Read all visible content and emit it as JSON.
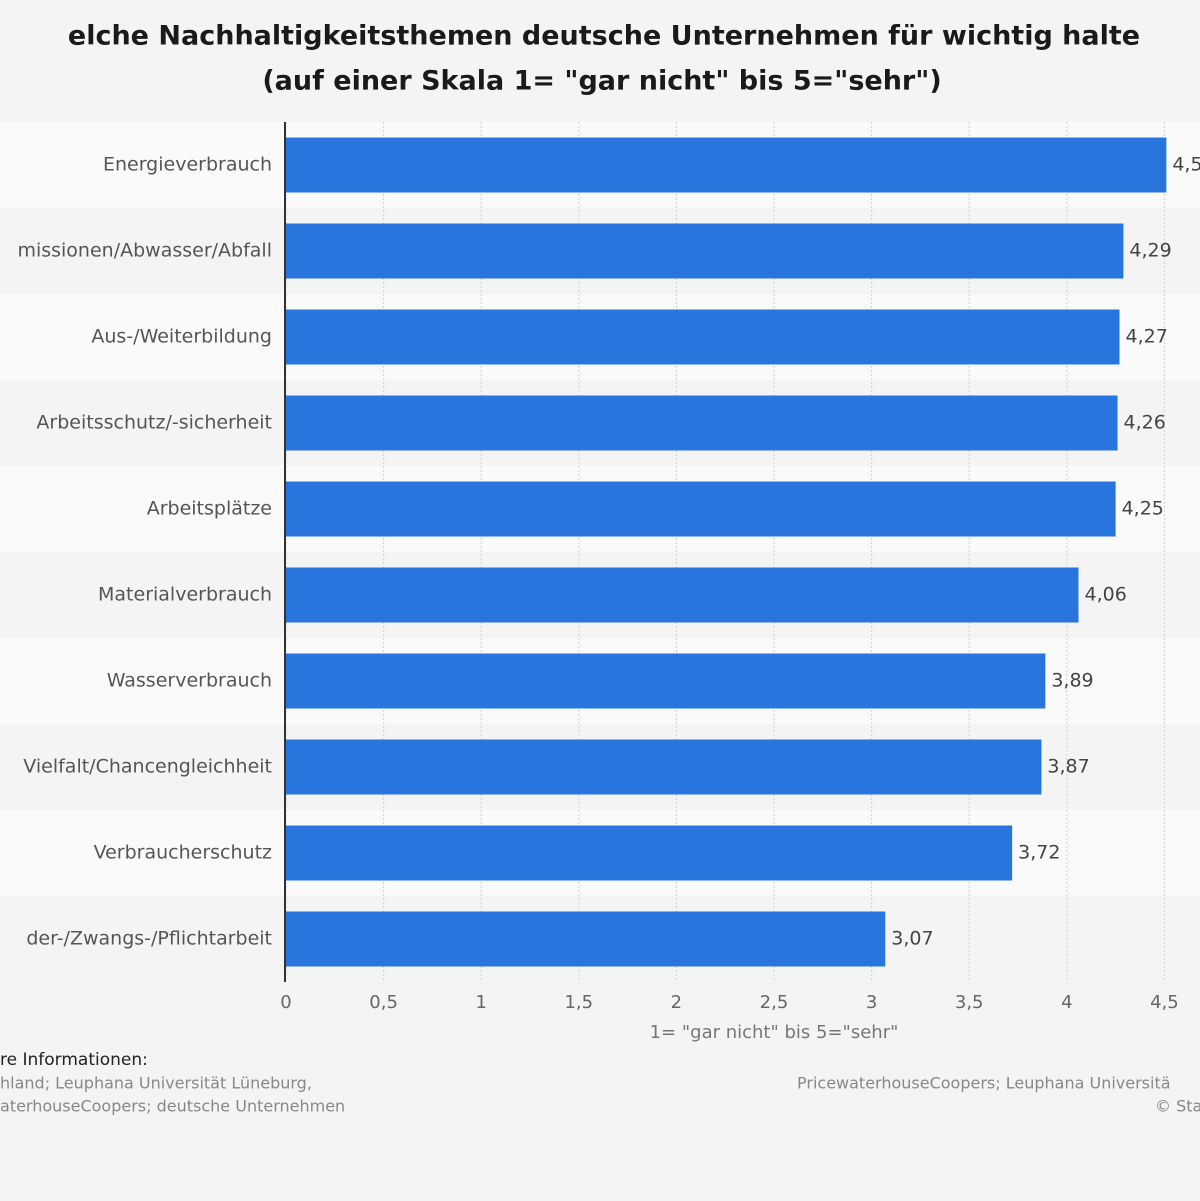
{
  "chart_data": {
    "type": "bar",
    "orientation": "horizontal",
    "title": "elche Nachhaltigkeitsthemen deutsche Unternehmen für wichtig halte",
    "subtitle": "(auf einer Skala 1= \"gar nicht\" bis 5=\"sehr\")",
    "x_label": "1= \"gar nicht\" bis 5=\"sehr\"",
    "categories": [
      "Energieverbrauch",
      "missionen/Abwasser/Abfall",
      "Aus-/Weiterbildung",
      "Arbeitsschutz/-sicherheit",
      "Arbeitsplätze",
      "Materialverbrauch",
      "Wasserverbrauch",
      "Vielfalt/Chancengleichheit",
      "Verbraucherschutz",
      "der-/Zwangs-/Pflichtarbeit"
    ],
    "values": [
      4.51,
      4.29,
      4.27,
      4.26,
      4.25,
      4.06,
      3.89,
      3.87,
      3.72,
      3.07
    ],
    "value_labels": [
      "4,5",
      "4,29",
      "4,27",
      "4,26",
      "4,25",
      "4,06",
      "3,89",
      "3,87",
      "3,72",
      "3,07"
    ],
    "color": "#2876dd",
    "xlim": [
      0,
      5
    ],
    "xticks": [
      0,
      {
        "value": 0.5,
        "label": "0,5"
      },
      1,
      {
        "value": 1.5,
        "label": "1,5"
      },
      2,
      {
        "value": 2.5,
        "label": "2,5"
      },
      3,
      {
        "value": 3.5,
        "label": "3,5"
      },
      4,
      {
        "value": 4.5,
        "label": "4,5"
      }
    ],
    "grid": true
  },
  "footer": {
    "left_heading": "re Informationen:",
    "left_lines": [
      "hland; Leuphana Universität Lüneburg,",
      "aterhouseCoopers; deutsche Unternehmen"
    ],
    "right_lines": [
      "PricewaterhouseCoopers; Leuphana Universitä",
      "© Sta"
    ]
  }
}
